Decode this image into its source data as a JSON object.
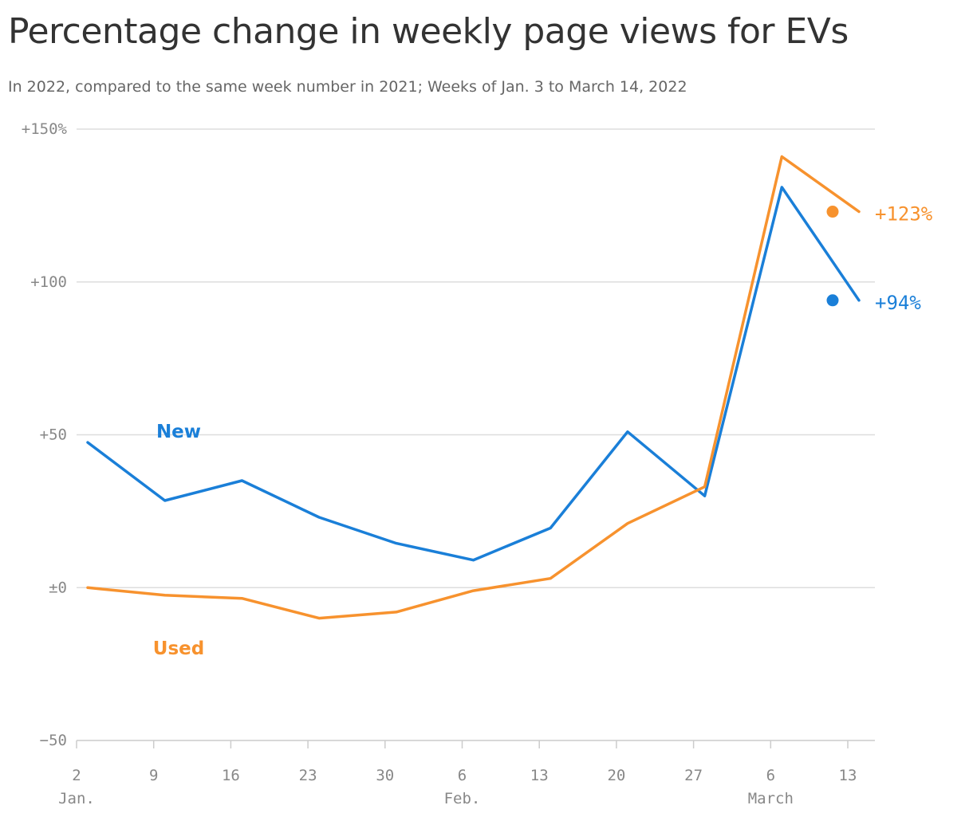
{
  "title": "Percentage change in weekly page views for EVs",
  "subtitle": "In 2022, compared to the same week number in 2021; Weeks of Jan. 3 to March 14, 2022",
  "chart_data": {
    "type": "line",
    "x": [
      "2",
      "9",
      "16",
      "23",
      "30",
      "6",
      "13",
      "20",
      "27",
      "6",
      "13"
    ],
    "month_labels": [
      {
        "label": "Jan.",
        "index": 0
      },
      {
        "label": "Feb.",
        "index": 5
      },
      {
        "label": "March",
        "index": 9
      }
    ],
    "y_ticks": [
      {
        "value": 150,
        "label": "+150%"
      },
      {
        "value": 100,
        "label": "+100"
      },
      {
        "value": 50,
        "label": "+50"
      },
      {
        "value": 0,
        "label": "±0"
      },
      {
        "value": -50,
        "label": "−50"
      }
    ],
    "ylim": [
      -50,
      150
    ],
    "grid": true,
    "series": [
      {
        "name": "New",
        "color": "#1a7fd8",
        "values": [
          47.5,
          28.5,
          35,
          23,
          14.5,
          9,
          19.5,
          51,
          30,
          131,
          94
        ],
        "end_label": "+94%"
      },
      {
        "name": "Used",
        "color": "#f7922e",
        "values": [
          0,
          -2.5,
          -3.5,
          -10,
          -8,
          -1,
          3,
          21,
          33,
          141,
          123
        ],
        "end_label": "+123%"
      }
    ]
  }
}
